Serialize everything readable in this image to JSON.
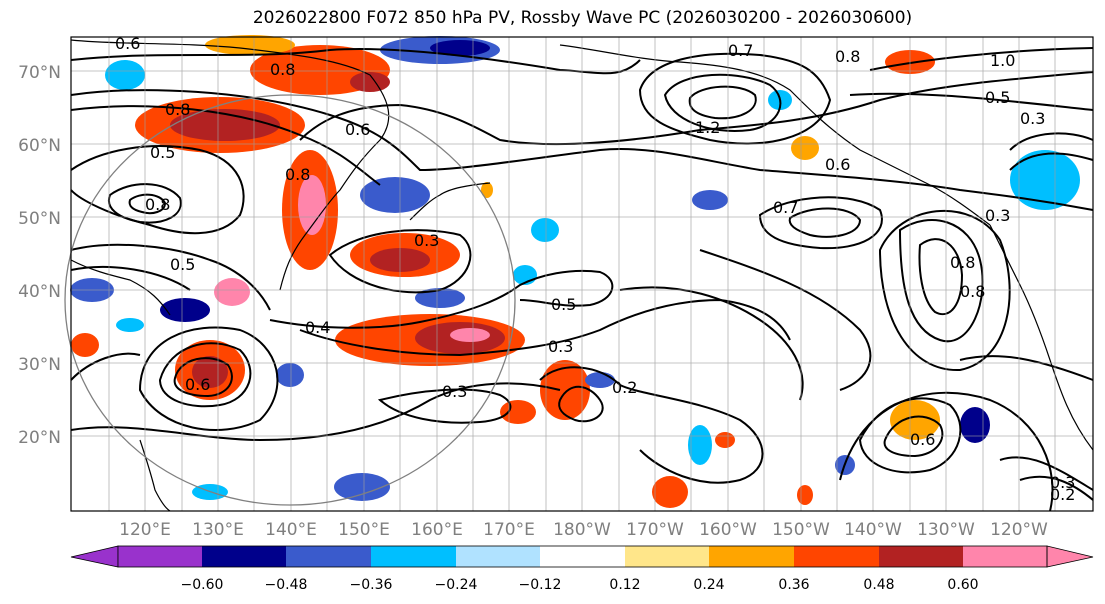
{
  "title": "2026022800 F072 850 hPa PV, Rossby Wave PC (2026030200 - 2026030600)",
  "map": {
    "lat_labels": [
      "70°N",
      "60°N",
      "50°N",
      "40°N",
      "30°N",
      "20°N"
    ],
    "lon_labels": [
      "120°E",
      "130°E",
      "140°E",
      "150°E",
      "160°E",
      "170°E",
      "180°W",
      "170°W",
      "160°W",
      "150°W",
      "140°W",
      "130°W",
      "120°W"
    ],
    "contour_labels": [
      "0.6",
      "0.8",
      "0.7",
      "0.8",
      "1.0",
      "0.8",
      "0.5",
      "0.3",
      "0.6",
      "1.2",
      "0.5",
      "0.8",
      "0.6",
      "0.7",
      "0.3",
      "0.3",
      "0.5",
      "0.8",
      "0.8",
      "0.4",
      "0.5",
      "0.3",
      "0.2",
      "0.3",
      "0.6",
      "0.3",
      "0.2",
      "0.6",
      "0.8"
    ],
    "colors": {
      "land_outline": "#000000",
      "contour": "#000000",
      "grid": "#9e9e9e"
    }
  },
  "colorbar": {
    "ticks": [
      "−0.60",
      "−0.48",
      "−0.36",
      "−0.24",
      "−0.12",
      "0.12",
      "0.24",
      "0.36",
      "0.48",
      "0.60"
    ],
    "colors": [
      "#9932cc",
      "#00008b",
      "#3a5bcc",
      "#00bfff",
      "#b0e2ff",
      "#ffffff",
      "#ffe68a",
      "#ffa500",
      "#ff4500",
      "#b22222",
      "#ff85ab"
    ]
  }
}
